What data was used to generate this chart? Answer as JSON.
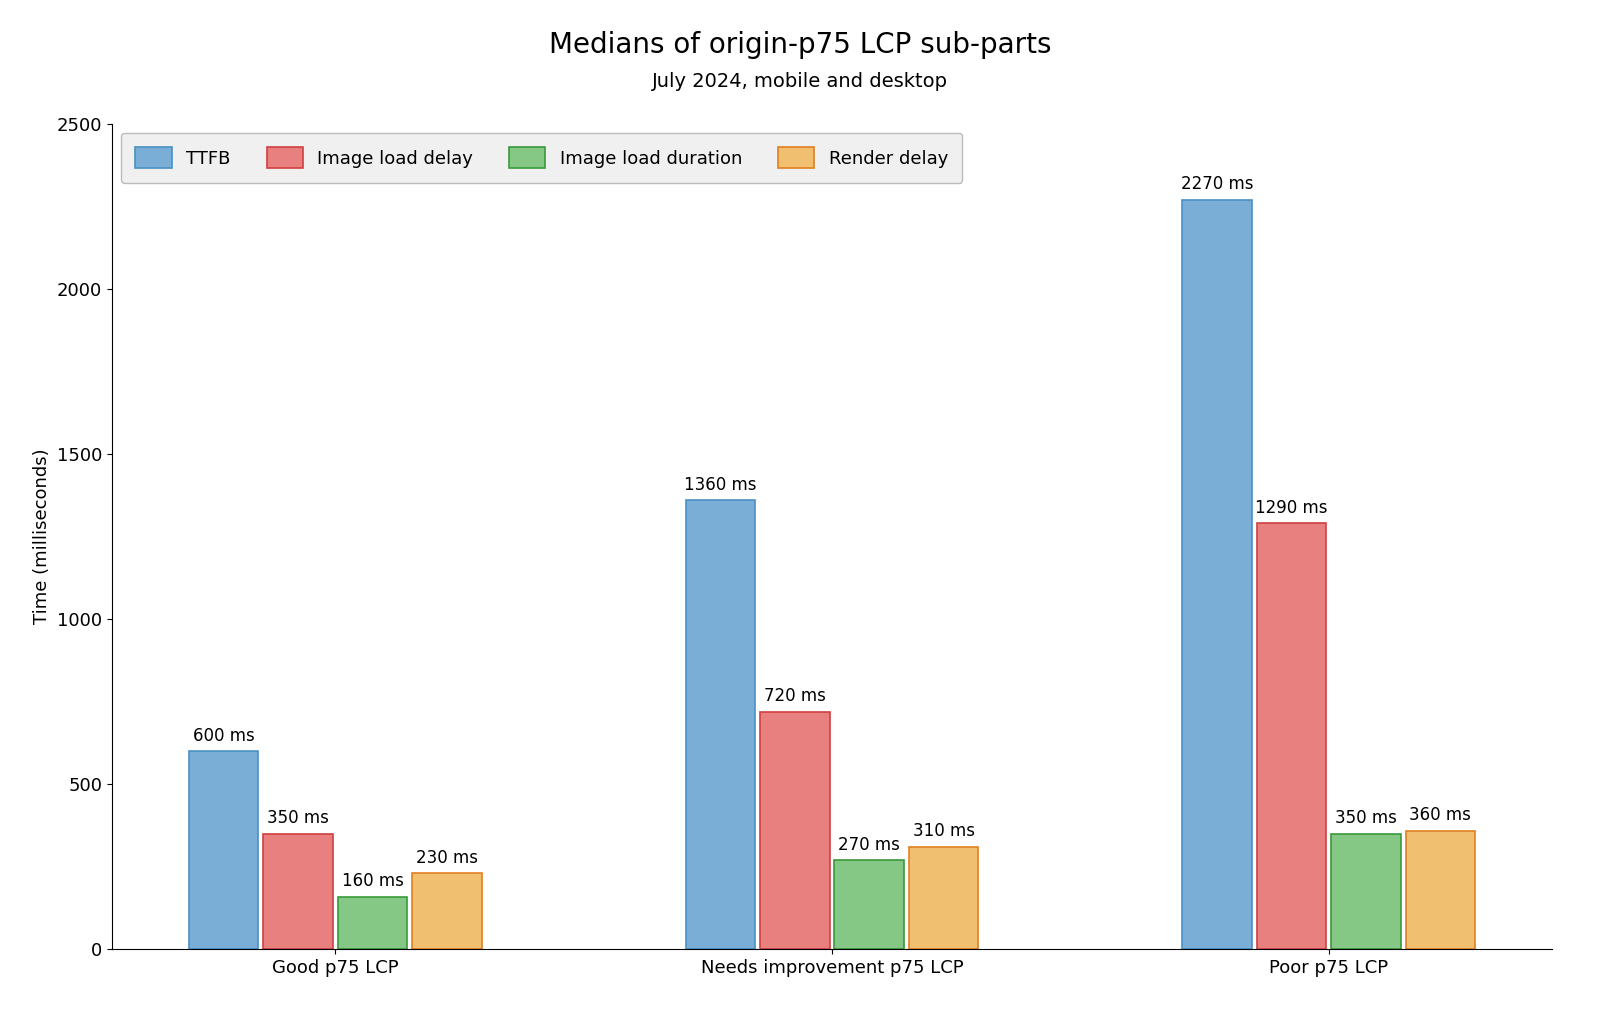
{
  "title": "Medians of origin-p75 LCP sub-parts",
  "subtitle": "July 2024, mobile and desktop",
  "ylabel": "Time (milliseconds)",
  "categories": [
    "Good p75 LCP",
    "Needs improvement p75 LCP",
    "Poor p75 LCP"
  ],
  "series": {
    "TTFB": [
      600,
      1360,
      2270
    ],
    "Image load delay": [
      350,
      720,
      1290
    ],
    "Image load duration": [
      160,
      270,
      350
    ],
    "Render delay": [
      230,
      310,
      360
    ]
  },
  "colors": {
    "TTFB": "#7aaed6",
    "Image load delay": "#e88080",
    "Image load duration": "#85c785",
    "Render delay": "#f0c070"
  },
  "bar_edge_colors": {
    "TTFB": "#4a90c4",
    "Image load delay": "#d04040",
    "Image load duration": "#3a9a3a",
    "Render delay": "#e08020"
  },
  "ylim": [
    0,
    2500
  ],
  "yticks": [
    0,
    500,
    1000,
    1500,
    2000,
    2500
  ],
  "bar_width": 0.14,
  "title_fontsize": 20,
  "subtitle_fontsize": 14,
  "label_fontsize": 13,
  "tick_fontsize": 13,
  "annot_fontsize": 12,
  "legend_fontsize": 13,
  "background_color": "#ffffff",
  "legend_bg": "#f0f0f0"
}
